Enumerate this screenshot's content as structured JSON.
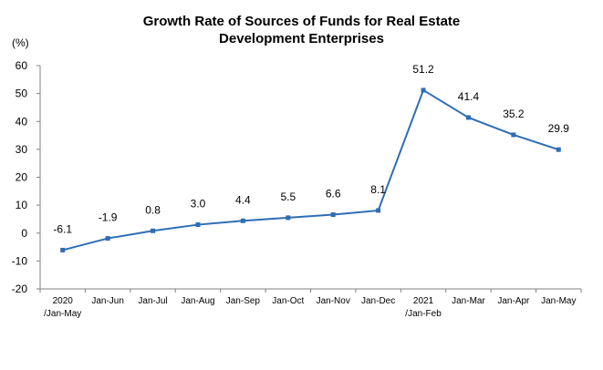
{
  "chart_data": {
    "type": "line",
    "title_line1": "Growth Rate of Sources of Funds for Real Estate",
    "title_line2": "Development Enterprises",
    "unit_label": "(%)",
    "xlabel": "",
    "ylabel": "",
    "ylim": [
      -20,
      60
    ],
    "yticks": [
      "60",
      "50",
      "40",
      "30",
      "20",
      "10",
      "0",
      "-10",
      "-20"
    ],
    "categories": [
      [
        "2020",
        "/Jan-May"
      ],
      [
        "Jan-Jun"
      ],
      [
        "Jan-Jul"
      ],
      [
        "Jan-Aug"
      ],
      [
        "Jan-Sep"
      ],
      [
        "Jan-Oct"
      ],
      [
        "Jan-Nov"
      ],
      [
        "Jan-Dec"
      ],
      [
        "2021",
        "/Jan-Feb"
      ],
      [
        "Jan-Mar"
      ],
      [
        "Jan-Apr"
      ],
      [
        "Jan-May"
      ]
    ],
    "series": [
      {
        "values": [
          -6.1,
          -1.9,
          0.8,
          3.0,
          4.4,
          5.5,
          6.6,
          8.1,
          51.2,
          41.4,
          35.2,
          29.9
        ],
        "labels": [
          "-6.1",
          "-1.9",
          "0.8",
          "3.0",
          "4.4",
          "5.5",
          "6.6",
          "8.1",
          "51.2",
          "41.4",
          "35.2",
          "29.9"
        ]
      }
    ],
    "line_color": "#2E6DB4",
    "marker": "square",
    "grid": false,
    "legend": "none"
  }
}
